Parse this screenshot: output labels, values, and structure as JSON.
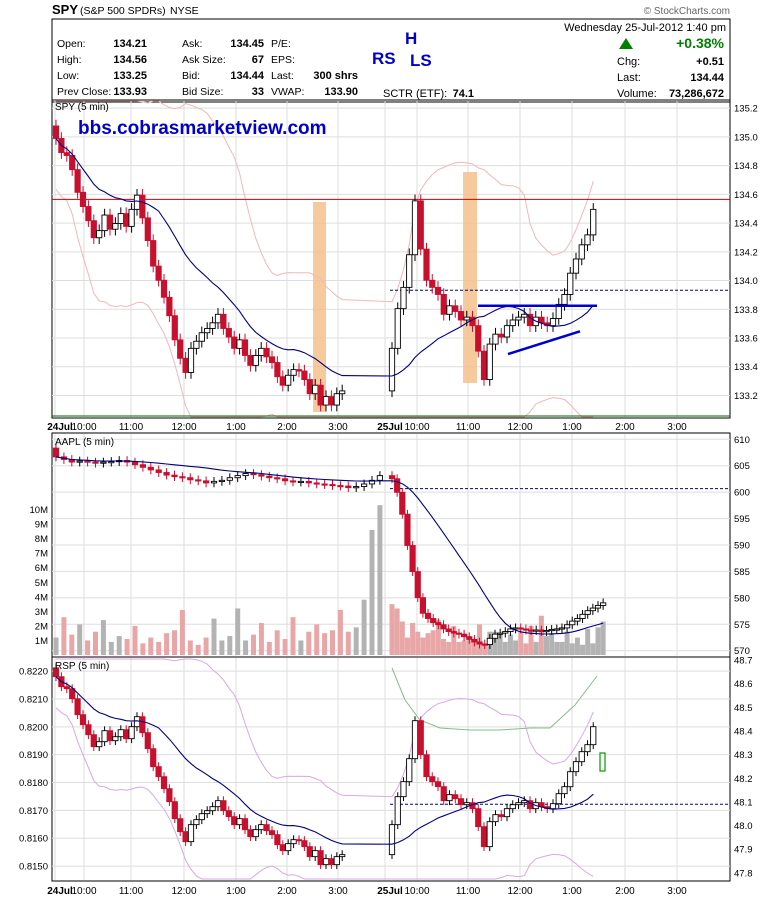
{
  "header": {
    "symbol": "SPY",
    "name": "(S&P 500 SPDRs)",
    "exchange": "NYSE",
    "copyright": "© StockCharts.com",
    "date": "Wednesday  25-Jul-2012  1:40 pm",
    "fields_col1": [
      {
        "label": "Open:",
        "value": "134.21"
      },
      {
        "label": "High:",
        "value": "134.56"
      },
      {
        "label": "Low:",
        "value": "133.25"
      },
      {
        "label": "Prev Close:",
        "value": "133.93"
      }
    ],
    "fields_col2": [
      {
        "label": "Ask:",
        "value": "134.45"
      },
      {
        "label": "Ask Size:",
        "value": "67"
      },
      {
        "label": "Bid:",
        "value": "134.44"
      },
      {
        "label": "Bid Size:",
        "value": "33"
      }
    ],
    "fields_col3": [
      {
        "label": "P/E:",
        "value": ""
      },
      {
        "label": "EPS:",
        "value": ""
      },
      {
        "label": "Last:",
        "value": "300 shrs"
      },
      {
        "label": "VWAP:",
        "value": "133.90"
      }
    ],
    "sctr_label": "SCTR (ETF):",
    "sctr_value": "74.1",
    "pct_change": "+0.38%",
    "chg_label": "Chg:",
    "chg_value": "+0.51",
    "last_label": "Last:",
    "last_value": "134.44",
    "volume_label": "Volume:",
    "volume_value": "73,286,672",
    "annotation_rs": "RS",
    "annotation_h": "H",
    "annotation_ls": "LS",
    "up_color": "#008000",
    "annotation_color": "#0000cc"
  },
  "watermark": "bbs.cobrasmarketview.com",
  "colors": {
    "up": "#000000",
    "down": "#c8102e",
    "ma": "#000080",
    "band": "#f2b8b8",
    "highlight": "#f5c18c",
    "support": "#006600",
    "resistance": "#cc0000",
    "trend": "#0000cc",
    "dashed": "#000080",
    "grid": "#dddddd",
    "vol_up": "#b3b3b3",
    "vol_down": "#e8a6a6",
    "rsp_green": "#88bb88",
    "rsp_violet": "#d8a8e8"
  },
  "chart_data": [
    {
      "type": "line",
      "panel": "price",
      "label": "SPY (5 min)",
      "x_ticks": [
        "24Jul",
        "10:00",
        "11:00",
        "12:00",
        "1:00",
        "2:00",
        "3:00",
        "25Jul",
        "10:00",
        "11:00",
        "12:00",
        "1:00",
        "2:00",
        "3:00"
      ],
      "y_ticks": [
        "135.2",
        "135.0",
        "134.8",
        "134.6",
        "134.4",
        "134.2",
        "134.0",
        "133.8",
        "133.6",
        "133.4",
        "133.2"
      ],
      "ylim": [
        133.05,
        135.25
      ],
      "closes_day1": [
        135.0,
        134.9,
        134.88,
        134.78,
        134.62,
        134.52,
        134.42,
        134.3,
        134.35,
        134.46,
        134.36,
        134.4,
        134.47,
        134.38,
        134.5,
        134.6,
        134.44,
        134.28,
        134.1,
        134.0,
        133.88,
        133.75,
        133.58,
        133.45,
        133.35,
        133.52,
        133.57,
        133.63,
        133.66,
        133.7,
        133.76,
        133.66,
        133.6,
        133.52,
        133.58,
        133.47,
        133.4,
        133.47,
        133.52,
        133.46,
        133.42,
        133.32,
        133.26,
        133.33,
        133.37,
        133.36,
        133.3,
        133.2,
        133.26,
        133.12,
        133.18,
        133.12,
        133.2,
        133.22
      ],
      "closes_day2": [
        133.52,
        133.8,
        133.95,
        134.18,
        134.56,
        134.22,
        134.0,
        133.95,
        133.9,
        133.76,
        133.82,
        133.78,
        133.72,
        133.74,
        133.68,
        133.5,
        133.3,
        133.55,
        133.62,
        133.6,
        133.68,
        133.72,
        133.74,
        133.76,
        133.68,
        133.74,
        133.7,
        133.68,
        133.73,
        133.83,
        133.9,
        134.05,
        134.15,
        134.25,
        134.32,
        134.5
      ],
      "moving_average": "20-period",
      "support_level": 133.05,
      "resistance_level": 134.57,
      "dashed_level": 133.93
    },
    {
      "type": "bar",
      "panel": "aapl",
      "label": "AAPL (5 min)",
      "price_ticks": [
        "610",
        "605",
        "600",
        "595",
        "590",
        "585",
        "580",
        "575",
        "570"
      ],
      "price_lim": [
        569,
        611
      ],
      "volume_ticks": [
        "10M",
        "9M",
        "8M",
        "7M",
        "6M",
        "5M",
        "4M",
        "3M",
        "2M",
        "1M"
      ],
      "volume_lim": [
        0,
        11
      ],
      "dashed_level": 600.9,
      "closes": [
        607,
        606.5,
        606,
        606.2,
        606,
        605.8,
        606,
        606.1,
        606.3,
        606,
        605.5,
        605,
        604.5,
        604,
        603.5,
        603.2,
        603,
        602.6,
        602.4,
        602,
        602.3,
        602.5,
        603,
        603.4,
        603.8,
        603.6,
        603.3,
        603.0,
        602.8,
        602.4,
        602.2,
        602.3,
        602.0,
        601.8,
        601.7,
        601.5,
        601.4,
        601.1,
        601.3,
        601.8,
        602.5,
        603.4,
        602.8,
        600.2,
        596,
        590,
        585,
        580,
        577,
        576,
        575.2,
        574.8,
        574.0,
        573.5,
        573.2,
        573.0,
        572.5,
        572.0,
        571.5,
        571.1,
        571.0,
        572.2,
        573.0,
        573.2,
        573.5,
        574.0,
        574.2,
        574.0,
        573.8,
        573.7,
        573.8,
        573.5,
        573.7,
        573.9,
        574.0,
        574.2,
        574.8,
        575.5,
        576.0,
        576.8,
        577.5,
        578.0,
        578.5,
        579.0
      ],
      "volume_millions": [
        1.2,
        2.6,
        1.4,
        2.1,
        1.0,
        1.6,
        2.4,
        0.9,
        1.3,
        1.1,
        2.0,
        0.8,
        1.2,
        0.9,
        1.5,
        1.7,
        3.1,
        1.0,
        0.7,
        1.2,
        2.5,
        1.0,
        1.3,
        3.2,
        1.0,
        1.4,
        2.2,
        0.9,
        1.7,
        1.1,
        2.6,
        1.0,
        1.6,
        2.1,
        1.5,
        1.7,
        3.1,
        1.6,
        1.9,
        3.8,
        8.6,
        10.3,
        3.5,
        3.2,
        2.3,
        1.2,
        2.2,
        1.6,
        1.2,
        1.5,
        1.7,
        2.4,
        1.1,
        0.9,
        2.0,
        0.9,
        1.0,
        1.3,
        1.0,
        2.1,
        0.8,
        1.6,
        1.6,
        1.4,
        0.9,
        1.4,
        1.0,
        1.6,
        0.8,
        2.0,
        0.9,
        2.7,
        1.3,
        1.5,
        0.9,
        0.9,
        1.6,
        0.8,
        1.2,
        0.7,
        1.8,
        0.8,
        1.9,
        2.3
      ],
      "x_ticks": [
        "24Jul",
        "10:00",
        "11:00",
        "12:00",
        "1:00",
        "2:00",
        "3:00",
        "25Jul",
        "10:00",
        "11:00",
        "12:00",
        "1:00",
        "2:00",
        "3:00"
      ]
    },
    {
      "type": "line",
      "panel": "rsp",
      "label": "RSP (5 min)",
      "left_ticks": [
        "0.8220",
        "0.8210",
        "0.8200",
        "0.8190",
        "0.8180",
        "0.8170",
        "0.8160",
        "0.8150"
      ],
      "left_lim": [
        0.8145,
        0.8224
      ],
      "right_ticks": [
        "48.7",
        "48.6",
        "48.5",
        "48.4",
        "48.3",
        "48.2",
        "48.1",
        "48.0",
        "47.9",
        "47.8"
      ],
      "right_lim": [
        47.77,
        48.7
      ],
      "dashed_level": 0.81722,
      "x_ticks": [
        "24Jul",
        "10:00",
        "11:00",
        "12:00",
        "1:00",
        "2:00",
        "3:00",
        "25Jul",
        "10:00",
        "11:00",
        "12:00",
        "1:00",
        "2:00",
        "3:00"
      ]
    }
  ]
}
